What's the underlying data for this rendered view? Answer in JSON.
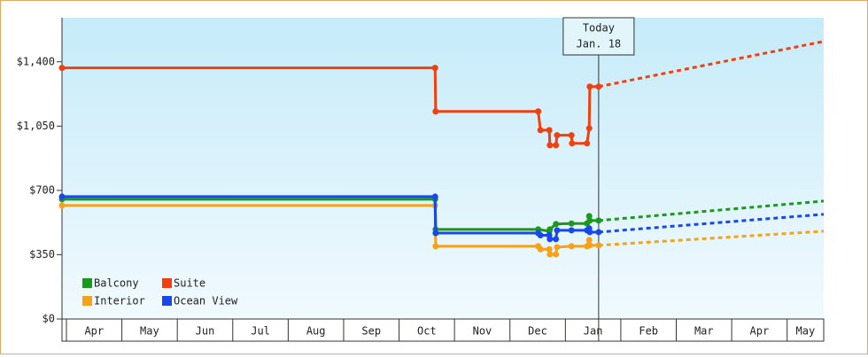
{
  "chart_data": {
    "type": "line",
    "categories": [
      "Apr",
      "May",
      "Jun",
      "Jul",
      "Aug",
      "Sep",
      "Oct",
      "Nov",
      "Dec",
      "Jan",
      "Feb",
      "Mar",
      "Apr",
      "May"
    ],
    "xlim": [
      -0.08,
      13.66
    ],
    "ylim": [
      0,
      1640
    ],
    "yticks": [
      {
        "value": 0,
        "label": "$0"
      },
      {
        "value": 350,
        "label": "$350"
      },
      {
        "value": 700,
        "label": "$700"
      },
      {
        "value": 1050,
        "label": "$1,050"
      },
      {
        "value": 1400,
        "label": "$1,400"
      }
    ],
    "grid": false,
    "legend": "bottom-left",
    "annotation": {
      "x": 9.6,
      "lines": [
        "Today",
        "Jan. 18"
      ]
    },
    "series": [
      {
        "name": "Balcony",
        "color": "#1a9a1a",
        "x": [
          -0.08,
          6.65,
          6.66,
          8.51,
          8.71,
          8.72,
          8.83,
          9.11,
          9.39,
          9.43,
          9.44,
          9.6
        ],
        "values": [
          652,
          652,
          488,
          488,
          478,
          488,
          517,
          520,
          520,
          560,
          536,
          536
        ],
        "projection": {
          "x": [
            9.6,
            13.66
          ],
          "values": [
            536,
            642
          ]
        }
      },
      {
        "name": "Suite",
        "color": "#f04010",
        "x": [
          -0.08,
          6.65,
          6.66,
          8.51,
          8.55,
          8.71,
          8.72,
          8.83,
          8.85,
          9.11,
          9.12,
          9.39,
          9.43,
          9.44,
          9.6
        ],
        "values": [
          1367,
          1367,
          1130,
          1130,
          1028,
          1028,
          946,
          946,
          1000,
          1000,
          956,
          956,
          1038,
          1265,
          1265
        ],
        "projection": {
          "x": [
            9.6,
            13.66
          ],
          "values": [
            1265,
            1511
          ]
        }
      },
      {
        "name": "Interior",
        "color": "#f5a21a",
        "x": [
          -0.08,
          6.65,
          6.66,
          8.51,
          8.55,
          8.71,
          8.72,
          8.83,
          8.85,
          9.11,
          9.39,
          9.43,
          9.44,
          9.6
        ],
        "values": [
          618,
          618,
          396,
          396,
          380,
          380,
          352,
          352,
          391,
          396,
          396,
          430,
          401,
          401
        ],
        "projection": {
          "x": [
            9.6,
            13.66
          ],
          "values": [
            401,
            478
          ]
        }
      },
      {
        "name": "Ocean View",
        "color": "#1848e8",
        "x": [
          -0.08,
          6.65,
          6.66,
          8.51,
          8.55,
          8.71,
          8.72,
          8.83,
          8.85,
          9.11,
          9.39,
          9.43,
          9.44,
          9.6
        ],
        "values": [
          666,
          666,
          468,
          468,
          456,
          456,
          435,
          435,
          483,
          483,
          483,
          493,
          473,
          473
        ],
        "projection": {
          "x": [
            9.6,
            13.66
          ],
          "values": [
            473,
            570
          ]
        }
      }
    ]
  }
}
